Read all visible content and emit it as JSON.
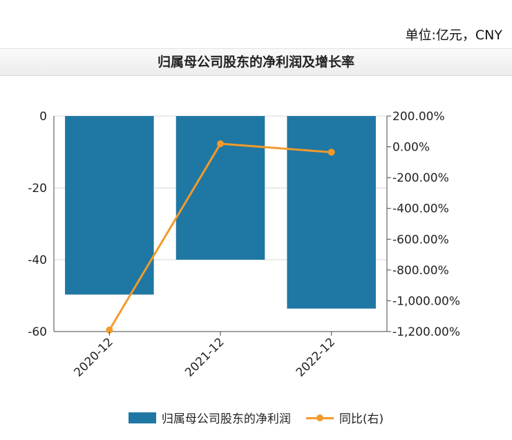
{
  "header": {
    "unit": "单位:亿元，CNY"
  },
  "chart_data": {
    "type": "bar",
    "title": "归属母公司股东的净利润及增长率",
    "categories": [
      "2020-12",
      "2021-12",
      "2022-12"
    ],
    "series": [
      {
        "name": "归属母公司股东的净利润",
        "type": "bar",
        "axis": "left",
        "values": [
          -49.7,
          -40.0,
          -53.6
        ],
        "color": "#1f77a4"
      },
      {
        "name": "同比(右)",
        "type": "line",
        "axis": "right",
        "values": [
          -1190,
          20,
          -35
        ],
        "color": "#f39a2b"
      }
    ],
    "y_left": {
      "min": -60,
      "max": 0,
      "ticks": [
        0,
        -20,
        -40,
        -60
      ],
      "tick_labels": [
        "0",
        "-20",
        "-40",
        "-60"
      ]
    },
    "y_right": {
      "min": -1200,
      "max": 200,
      "ticks": [
        200,
        0,
        -200,
        -400,
        -600,
        -800,
        -1000,
        -1200
      ],
      "tick_labels": [
        "200.00%",
        "0.00%",
        "-200.00%",
        "-400.00%",
        "-600.00%",
        "-800.00%",
        "-1,000.00%",
        "-1,200.00%"
      ]
    },
    "grid": true,
    "legend_position": "bottom"
  }
}
